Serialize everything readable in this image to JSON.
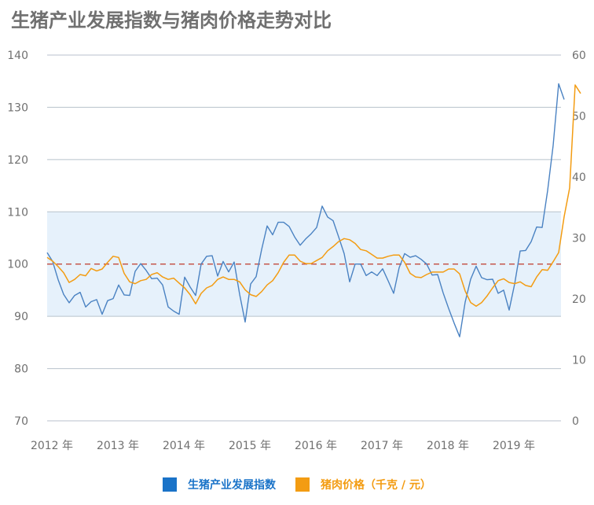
{
  "chart_data": {
    "type": "line",
    "title": "生猪产业发展指数与猪肉价格走势对比",
    "x_labels": [
      "2012 年",
      "2013 年",
      "2014 年",
      "2015 年",
      "2016 年",
      "2017 年",
      "2018 年",
      "2019 年"
    ],
    "left_axis": {
      "ticks": [
        "140",
        "130",
        "120",
        "110",
        "100",
        "90",
        "80",
        "70"
      ],
      "ylim": [
        70,
        140
      ]
    },
    "right_axis": {
      "ticks": [
        "60",
        "50",
        "40",
        "30",
        "20",
        "10",
        "0"
      ],
      "ylim": [
        0,
        60
      ]
    },
    "band": {
      "from": 90,
      "to": 110,
      "color": "#e6f1fb"
    },
    "reference_line": {
      "value": 100,
      "color": "#c0392b"
    },
    "grid": true,
    "legend_position": "bottom-center",
    "series": [
      {
        "name": "生猪产业发展指数",
        "axis": "left",
        "color": "#4a82c2",
        "start": "2012-01",
        "values": [
          102.2,
          100.5,
          97.0,
          94.2,
          92.6,
          94.0,
          94.6,
          91.8,
          92.8,
          93.2,
          90.4,
          93.0,
          93.4,
          96.0,
          94.1,
          94.0,
          98.6,
          100.1,
          98.8,
          97.2,
          97.3,
          96.0,
          91.8,
          91.0,
          90.4,
          97.5,
          95.6,
          94.0,
          100.0,
          101.5,
          101.6,
          97.7,
          100.5,
          98.5,
          100.4,
          94.2,
          88.9,
          96.2,
          97.6,
          102.8,
          107.3,
          105.6,
          108.0,
          108.0,
          107.2,
          105.2,
          103.6,
          104.8,
          105.8,
          107.0,
          111.1,
          109.0,
          108.3,
          105.2,
          102.0,
          96.6,
          100.0,
          100.0,
          97.8,
          98.5,
          97.8,
          99.1,
          96.8,
          94.4,
          99.3,
          102.0,
          101.3,
          101.6,
          100.9,
          100.0,
          97.9,
          98.0,
          94.5,
          91.5,
          88.7,
          86.1,
          92.7,
          97.1,
          99.6,
          97.4,
          97.0,
          97.1,
          94.4,
          95.0,
          91.2,
          96.2,
          102.5,
          102.6,
          104.3,
          107.1,
          107.0,
          114.1,
          122.7,
          134.5,
          131.5
        ]
      },
      {
        "name": "猪肉价格（千克 / 元）",
        "axis": "right",
        "color": "#f39c12",
        "start": "2012-01",
        "values": [
          26.8,
          26.2,
          25.3,
          24.3,
          22.7,
          23.2,
          24.0,
          23.8,
          25.0,
          24.6,
          24.9,
          26.0,
          27.0,
          26.8,
          24.2,
          22.8,
          22.5,
          23.0,
          23.2,
          24.0,
          24.3,
          23.6,
          23.2,
          23.4,
          22.6,
          21.8,
          20.7,
          19.2,
          20.9,
          21.8,
          22.2,
          23.2,
          23.6,
          23.2,
          23.2,
          22.8,
          21.5,
          20.7,
          20.4,
          21.2,
          22.3,
          23.0,
          24.3,
          26.0,
          27.2,
          27.2,
          26.2,
          25.8,
          25.8,
          26.3,
          26.8,
          27.9,
          28.6,
          29.4,
          29.9,
          29.7,
          29.1,
          28.1,
          27.9,
          27.3,
          26.7,
          26.7,
          27.0,
          27.2,
          27.2,
          26.0,
          24.2,
          23.6,
          23.5,
          24.0,
          24.4,
          24.4,
          24.4,
          24.9,
          24.9,
          24.1,
          21.3,
          19.4,
          18.8,
          19.4,
          20.5,
          21.8,
          23.0,
          23.3,
          22.7,
          22.5,
          22.8,
          22.2,
          22.0,
          23.6,
          24.8,
          24.7,
          26.1,
          27.6,
          33.5,
          38.2,
          55.1,
          53.7
        ]
      }
    ]
  }
}
